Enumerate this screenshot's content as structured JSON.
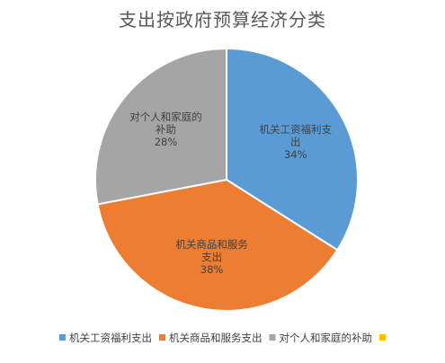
{
  "chart_data": {
    "type": "pie",
    "title": "支出按政府预算经济分类",
    "slices": [
      {
        "label_lines": [
          "机关工资福利支",
          "出"
        ],
        "legend": "机关工资福利支出",
        "value": 34,
        "value_label": "34%",
        "color": "#5b9bd5"
      },
      {
        "label_lines": [
          "机关商品和服务",
          "支出"
        ],
        "legend": "机关商品和服务支出",
        "value": 38,
        "value_label": "38%",
        "color": "#ed7d31"
      },
      {
        "label_lines": [
          "对个人和家庭的",
          "补助"
        ],
        "legend": "对个人和家庭的补助",
        "value": 28,
        "value_label": "28%",
        "color": "#a5a5a5"
      },
      {
        "label_lines": [],
        "legend": "",
        "value": 0,
        "value_label": "",
        "color": "#ffc000"
      }
    ],
    "legend_position": "bottom"
  }
}
